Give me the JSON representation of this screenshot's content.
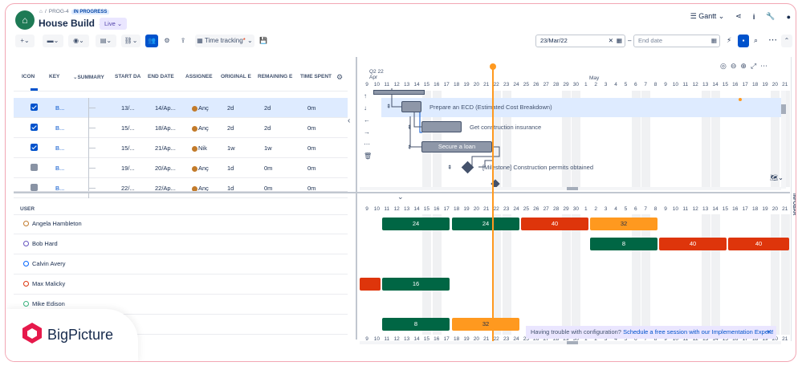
{
  "header": {
    "breadcrumb_project": "PROG-4",
    "breadcrumb_status": "IN PROGRESS",
    "title": "House Build",
    "mode": "Live",
    "view": "Gantt"
  },
  "toolbar": {
    "time_tracking_label": "Time tracking",
    "start_date": "23/Mar/22",
    "end_date_placeholder": "End date"
  },
  "table": {
    "columns": [
      "ICON",
      "KEY",
      "SUMMARY",
      "START DA",
      "END DATE",
      "ASSIGNEE",
      "ORIGINAL E",
      "REMAINING E",
      "TIME SPENT"
    ],
    "rows": [
      {
        "key": "B...",
        "start": "13/...",
        "end": "14/Ap...",
        "assignee": "Anç",
        "original": "2d",
        "remaining": "2d",
        "spent": "0m",
        "checked": true,
        "selected": true
      },
      {
        "key": "B...",
        "start": "15/...",
        "end": "18/Ap...",
        "assignee": "Anç",
        "original": "2d",
        "remaining": "2d",
        "spent": "0m",
        "checked": true,
        "selected": false
      },
      {
        "key": "B...",
        "start": "15/...",
        "end": "21/Ap...",
        "assignee": "Nik",
        "original": "1w",
        "remaining": "1w",
        "spent": "0m",
        "checked": true,
        "selected": false
      },
      {
        "key": "B...",
        "start": "19/...",
        "end": "20/Ap...",
        "assignee": "Anç",
        "original": "1d",
        "remaining": "0m",
        "spent": "0m",
        "checked": false,
        "selected": false
      },
      {
        "key": "B...",
        "start": "22/...",
        "end": "22/Ap...",
        "assignee": "Anç",
        "original": "1d",
        "remaining": "0m",
        "spent": "0m",
        "checked": false,
        "selected": false
      }
    ]
  },
  "gantt": {
    "quarter": "Q2 22",
    "month_apr": "Apr",
    "month_may": "May",
    "days": [
      "9",
      "10",
      "11",
      "12",
      "13",
      "14",
      "15",
      "16",
      "17",
      "18",
      "19",
      "20",
      "21",
      "22",
      "23",
      "24",
      "25",
      "26",
      "27",
      "28",
      "29",
      "30",
      "1",
      "2",
      "3",
      "4",
      "5",
      "6",
      "7",
      "8",
      "9",
      "10",
      "11",
      "12",
      "13",
      "14",
      "15",
      "16",
      "17",
      "18",
      "19",
      "20",
      "21"
    ],
    "tasks": [
      {
        "label": "Prepare an ECD (Estimated Cost Breakdown)"
      },
      {
        "label": "Get construction insurance"
      },
      {
        "label": "Secure a loan"
      },
      {
        "label": "[Milestone] Construction permits obtained"
      }
    ]
  },
  "users": {
    "header": "USER",
    "list": [
      {
        "name": "Angela Hambleton",
        "color": "#c27b2b"
      },
      {
        "name": "Bob Hard",
        "color": "#6554c0"
      },
      {
        "name": "Calvin Avery",
        "color": "#0065ff"
      },
      {
        "name": "Max Malicky",
        "color": "#de350b"
      },
      {
        "name": "Mike Edison",
        "color": "#36b37e"
      }
    ],
    "bars": [
      {
        "value": "24",
        "color": "#006644"
      },
      {
        "value": "24",
        "color": "#006644"
      },
      {
        "value": "40",
        "color": "#de350b"
      },
      {
        "value": "32",
        "color": "#ff991f"
      },
      {
        "value": "8",
        "color": "#006644"
      },
      {
        "value": "40",
        "color": "#de350b"
      },
      {
        "value": "40",
        "color": "#de350b"
      },
      {
        "value": "16",
        "color": "#006644"
      },
      {
        "value": "8",
        "color": "#006644"
      },
      {
        "value": "32",
        "color": "#ff991f"
      }
    ]
  },
  "banner": {
    "text": "Having trouble with configuration?",
    "link": "Schedule a free session with our Implementation Expert!"
  },
  "sidebar_label": "INFOBAR",
  "brand": "BigPicture"
}
